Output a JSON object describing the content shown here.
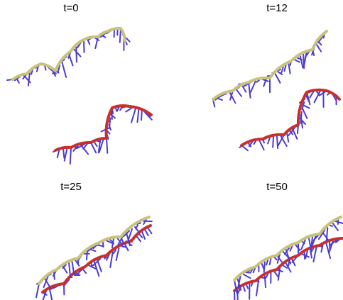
{
  "panels": [
    {
      "title": "t=0"
    },
    {
      "title": "t=12"
    },
    {
      "title": "t=25"
    },
    {
      "title": "t=50"
    }
  ]
}
